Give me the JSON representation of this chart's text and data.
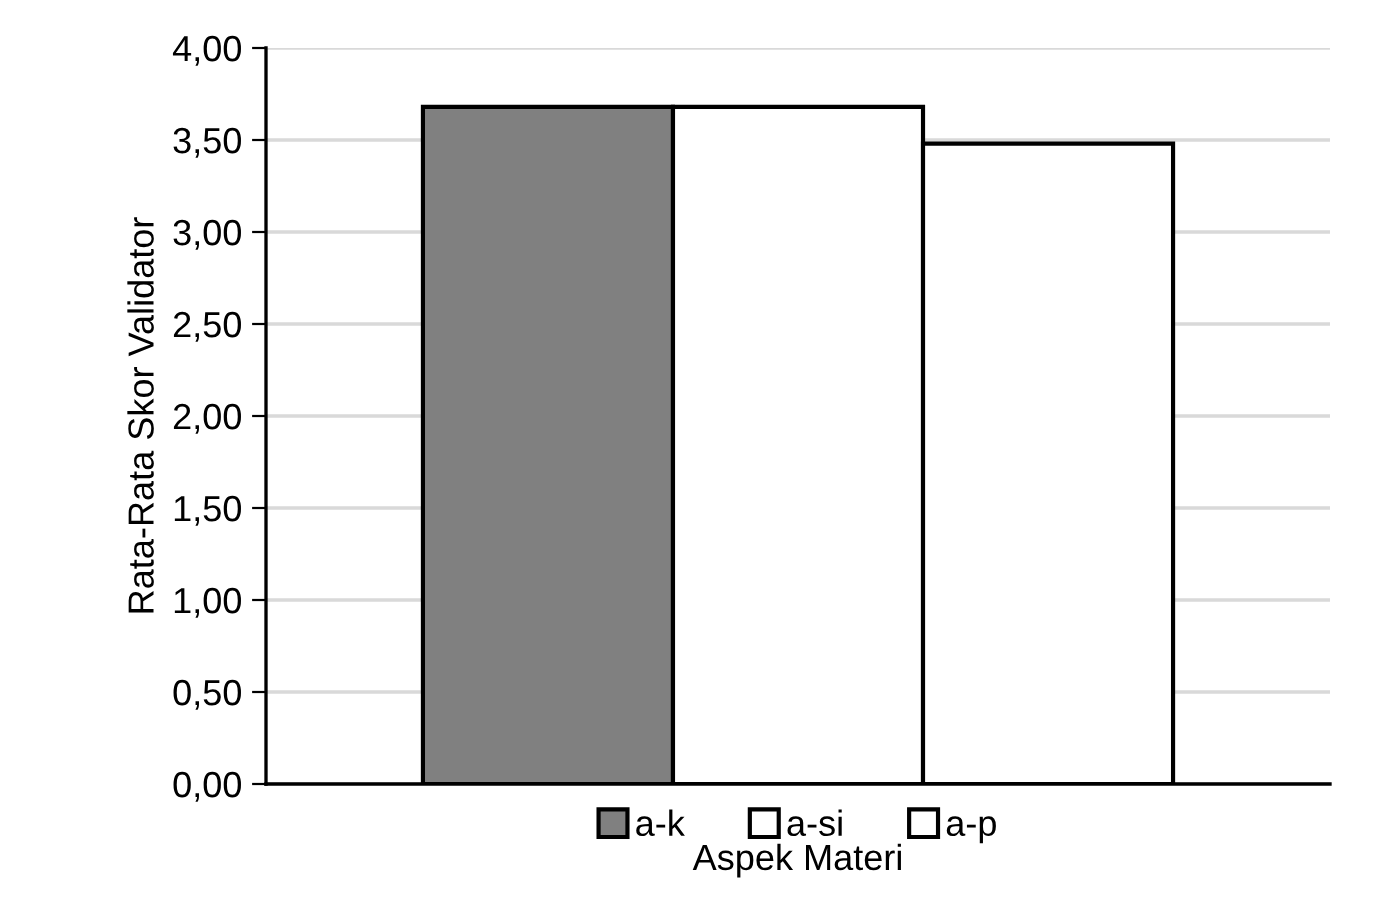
{
  "chart_data": {
    "type": "bar",
    "xlabel": "Aspek Materi",
    "ylabel": "Rata-Rata Skor Validator",
    "categories": [
      null
    ],
    "series": [
      {
        "name": "a-k",
        "color": "#808080",
        "values": [
          3.68
        ]
      },
      {
        "name": "a-si",
        "color": "#ffffff",
        "values": [
          3.68
        ]
      },
      {
        "name": "a-p",
        "color": "#ffffff",
        "values": [
          3.48
        ]
      }
    ],
    "ylim": [
      0,
      4
    ],
    "yticks": [
      {
        "value": 0,
        "label": "0,00"
      },
      {
        "value": 0.5,
        "label": "0,50"
      },
      {
        "value": 1,
        "label": "1,00"
      },
      {
        "value": 1.5,
        "label": "1,50"
      },
      {
        "value": 2,
        "label": "2,00"
      },
      {
        "value": 2.5,
        "label": "2,50"
      },
      {
        "value": 3,
        "label": "3,00"
      },
      {
        "value": 3.5,
        "label": "3,50"
      },
      {
        "value": 4,
        "label": "4,00"
      }
    ],
    "grid": "y",
    "legend": "bottom"
  }
}
